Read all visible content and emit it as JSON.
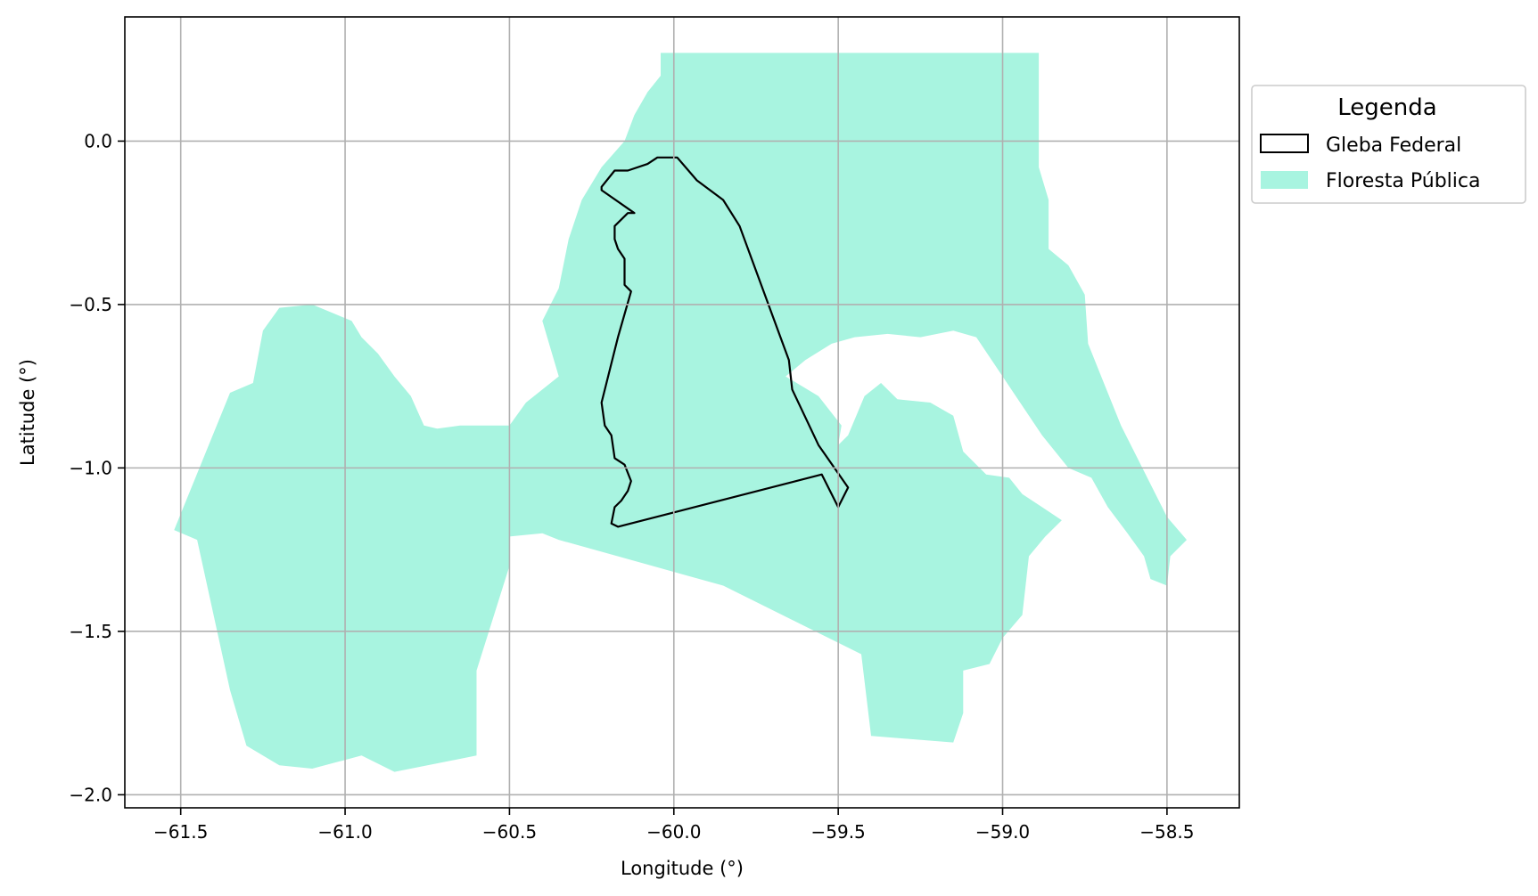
{
  "chart_data": {
    "type": "map",
    "xlabel": "Longitude (°)",
    "ylabel": "Latitude (°)",
    "xlim": [
      -61.67,
      -58.28
    ],
    "ylim": [
      -2.04,
      0.38
    ],
    "xticks": [
      -61.5,
      -61.0,
      -60.5,
      -60.0,
      -59.5,
      -59.0,
      -58.5
    ],
    "xtick_labels": [
      "−61.5",
      "−61.0",
      "−60.5",
      "−60.0",
      "−59.5",
      "−59.0",
      "−58.5"
    ],
    "yticks": [
      0.0,
      -0.5,
      -1.0,
      -1.5,
      -2.0
    ],
    "ytick_labels": [
      "0.0",
      "−0.5",
      "−1.0",
      "−1.5",
      "−2.0"
    ],
    "grid": true,
    "legend": {
      "title": "Legenda",
      "placement": "outside-right-top",
      "entries": [
        {
          "label": "Gleba Federal",
          "style": "outline",
          "color": "#000000"
        },
        {
          "label": "Floresta Pública",
          "style": "fill",
          "color": "#a8f4e0"
        }
      ]
    },
    "layers": [
      {
        "name": "Floresta Pública",
        "color": "#a8f4e0",
        "polygons": [
          [
            [
              -60.04,
              0.27
            ],
            [
              -58.89,
              0.27
            ],
            [
              -58.89,
              -0.08
            ],
            [
              -58.86,
              -0.18
            ],
            [
              -58.86,
              -0.33
            ],
            [
              -58.8,
              -0.38
            ],
            [
              -58.75,
              -0.47
            ],
            [
              -58.74,
              -0.62
            ],
            [
              -58.7,
              -0.72
            ],
            [
              -58.64,
              -0.87
            ],
            [
              -58.5,
              -1.15
            ],
            [
              -58.44,
              -1.22
            ],
            [
              -58.49,
              -1.27
            ],
            [
              -58.5,
              -1.36
            ],
            [
              -58.55,
              -1.34
            ],
            [
              -58.57,
              -1.27
            ],
            [
              -58.62,
              -1.2
            ],
            [
              -58.68,
              -1.12
            ],
            [
              -58.73,
              -1.03
            ],
            [
              -58.8,
              -1.0
            ],
            [
              -58.88,
              -0.9
            ],
            [
              -58.96,
              -0.78
            ],
            [
              -59.0,
              -0.72
            ],
            [
              -59.08,
              -0.6
            ],
            [
              -59.15,
              -0.58
            ],
            [
              -59.25,
              -0.6
            ],
            [
              -59.35,
              -0.59
            ],
            [
              -59.45,
              -0.6
            ],
            [
              -59.52,
              -0.62
            ],
            [
              -59.6,
              -0.67
            ],
            [
              -59.66,
              -0.72
            ],
            [
              -59.56,
              -0.78
            ],
            [
              -59.49,
              -0.87
            ],
            [
              -59.5,
              -0.93
            ],
            [
              -59.47,
              -0.9
            ],
            [
              -59.42,
              -0.78
            ],
            [
              -59.37,
              -0.74
            ],
            [
              -59.32,
              -0.79
            ],
            [
              -59.22,
              -0.8
            ],
            [
              -59.15,
              -0.84
            ],
            [
              -59.12,
              -0.95
            ],
            [
              -59.05,
              -1.02
            ],
            [
              -58.98,
              -1.03
            ],
            [
              -58.94,
              -1.08
            ],
            [
              -58.88,
              -1.12
            ],
            [
              -58.82,
              -1.16
            ],
            [
              -58.87,
              -1.21
            ],
            [
              -58.92,
              -1.27
            ],
            [
              -58.94,
              -1.45
            ],
            [
              -59.0,
              -1.52
            ],
            [
              -59.04,
              -1.6
            ],
            [
              -59.12,
              -1.62
            ],
            [
              -59.12,
              -1.75
            ],
            [
              -59.15,
              -1.84
            ],
            [
              -59.4,
              -1.82
            ],
            [
              -59.43,
              -1.57
            ],
            [
              -59.85,
              -1.36
            ],
            [
              -60.35,
              -1.22
            ],
            [
              -60.4,
              -1.2
            ],
            [
              -60.5,
              -1.21
            ],
            [
              -60.5,
              -1.3
            ],
            [
              -60.6,
              -1.62
            ],
            [
              -60.6,
              -1.88
            ],
            [
              -60.85,
              -1.93
            ],
            [
              -60.95,
              -1.88
            ],
            [
              -61.1,
              -1.92
            ],
            [
              -61.2,
              -1.91
            ],
            [
              -61.3,
              -1.85
            ],
            [
              -61.35,
              -1.68
            ],
            [
              -61.45,
              -1.22
            ],
            [
              -61.52,
              -1.19
            ],
            [
              -61.35,
              -0.77
            ],
            [
              -61.28,
              -0.74
            ],
            [
              -61.25,
              -0.58
            ],
            [
              -61.2,
              -0.51
            ],
            [
              -61.1,
              -0.5
            ],
            [
              -60.98,
              -0.55
            ],
            [
              -60.95,
              -0.6
            ],
            [
              -60.9,
              -0.65
            ],
            [
              -60.85,
              -0.72
            ],
            [
              -60.8,
              -0.78
            ],
            [
              -60.76,
              -0.87
            ],
            [
              -60.72,
              -0.88
            ],
            [
              -60.65,
              -0.87
            ],
            [
              -60.5,
              -0.87
            ],
            [
              -60.45,
              -0.8
            ],
            [
              -60.35,
              -0.72
            ],
            [
              -60.4,
              -0.55
            ],
            [
              -60.35,
              -0.45
            ],
            [
              -60.32,
              -0.3
            ],
            [
              -60.28,
              -0.18
            ],
            [
              -60.22,
              -0.08
            ],
            [
              -60.15,
              0.0
            ],
            [
              -60.12,
              0.08
            ],
            [
              -60.08,
              0.15
            ],
            [
              -60.04,
              0.2
            ]
          ]
        ]
      },
      {
        "name": "Gleba Federal",
        "color": "#000000",
        "polygons": [
          [
            [
              -60.22,
              -0.14
            ],
            [
              -60.18,
              -0.09
            ],
            [
              -60.14,
              -0.09
            ],
            [
              -60.08,
              -0.07
            ],
            [
              -60.05,
              -0.05
            ],
            [
              -60.03,
              -0.05
            ],
            [
              -59.99,
              -0.05
            ],
            [
              -59.93,
              -0.12
            ],
            [
              -59.85,
              -0.18
            ],
            [
              -59.8,
              -0.26
            ],
            [
              -59.65,
              -0.67
            ],
            [
              -59.64,
              -0.76
            ],
            [
              -59.56,
              -0.93
            ],
            [
              -59.47,
              -1.06
            ],
            [
              -59.5,
              -1.12
            ],
            [
              -59.55,
              -1.02
            ],
            [
              -60.17,
              -1.18
            ],
            [
              -60.19,
              -1.17
            ],
            [
              -60.18,
              -1.12
            ],
            [
              -60.16,
              -1.1
            ],
            [
              -60.14,
              -1.07
            ],
            [
              -60.13,
              -1.04
            ],
            [
              -60.15,
              -0.99
            ],
            [
              -60.18,
              -0.97
            ],
            [
              -60.19,
              -0.9
            ],
            [
              -60.21,
              -0.87
            ],
            [
              -60.22,
              -0.8
            ],
            [
              -60.17,
              -0.6
            ],
            [
              -60.13,
              -0.46
            ],
            [
              -60.15,
              -0.44
            ],
            [
              -60.15,
              -0.36
            ],
            [
              -60.17,
              -0.33
            ],
            [
              -60.18,
              -0.3
            ],
            [
              -60.18,
              -0.26
            ],
            [
              -60.14,
              -0.22
            ],
            [
              -60.12,
              -0.22
            ],
            [
              -60.22,
              -0.15
            ]
          ]
        ]
      }
    ]
  }
}
